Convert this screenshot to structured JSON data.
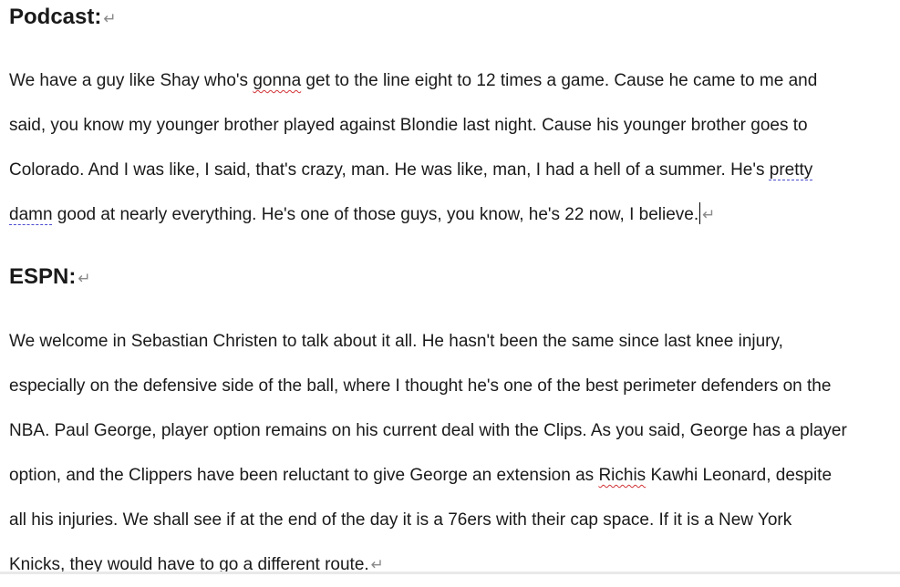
{
  "pilcrow": "↵",
  "sections": {
    "podcast": {
      "heading": "Podcast:",
      "lines": {
        "l1a": "We have a guy like Shay who's ",
        "l1b": "gonna",
        "l1c": " get to the line eight to 12 times a game. Cause he came to me and",
        "l2": "said, you know my younger brother played against Blondie last night. Cause his younger brother goes to",
        "l3a": "Colorado. And I was like, I said, that's crazy, man. He was like, man, I had a hell of a summer. He's ",
        "l3b": "pretty ",
        "l4a": "damn",
        "l4b": " good at nearly everything. He's one of those guys, you know, he's 22 now, I believe."
      }
    },
    "espn": {
      "heading": "ESPN:",
      "lines": {
        "l1": "We welcome in Sebastian Christen to talk about it all. He hasn't been the same since last knee injury,",
        "l2": "especially on the defensive side of the ball, where I thought he's one of the best perimeter defenders on the",
        "l3": "NBA. Paul George, player option remains on his current deal with the Clips. As you said, George has a player",
        "l4a": "option, and the Clippers have been reluctant to give George an extension as ",
        "l4b": "Richis",
        "l4c": " Kawhi Leonard, despite",
        "l5": "all his injuries. We shall see if at the end of the day it is a 76ers with their cap space. If it is a New York",
        "l6": "Knicks, they would have to go a different route."
      }
    }
  }
}
